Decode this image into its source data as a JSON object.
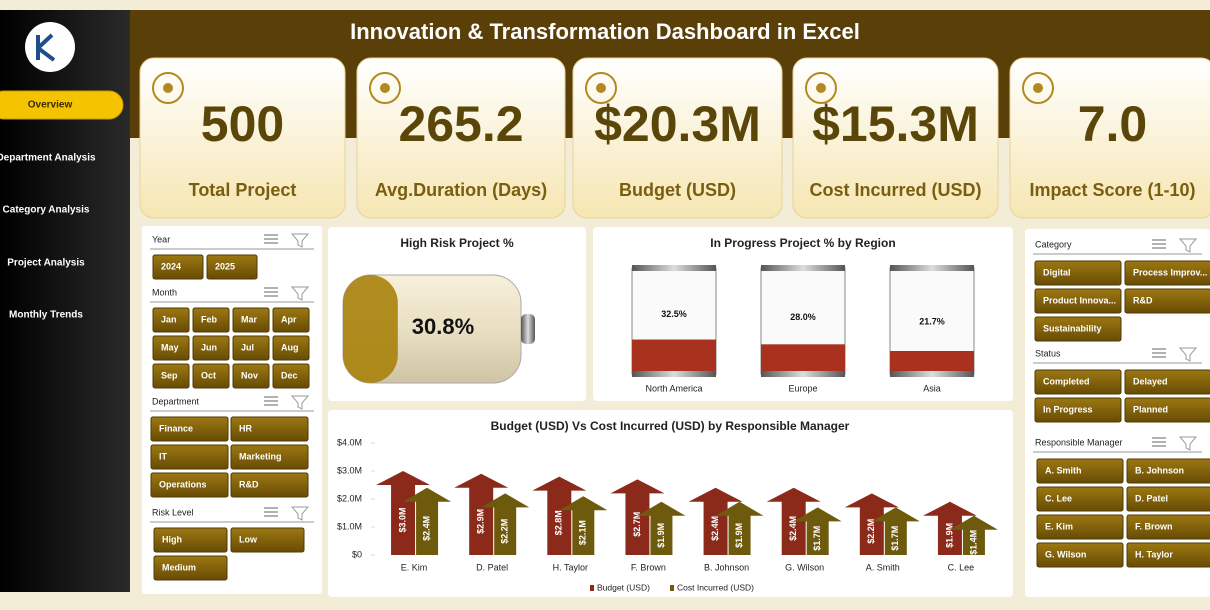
{
  "header": {
    "title": "Innovation & Transformation Dashboard in Excel"
  },
  "nav": [
    "Overview",
    "Department Analysis",
    "Category Analysis",
    "Project Analysis",
    "Monthly Trends"
  ],
  "kpis": [
    {
      "value": "500",
      "label": "Total Project"
    },
    {
      "value": "265.2",
      "label": "Avg.Duration (Days)"
    },
    {
      "value": "$20.3M",
      "label": "Budget (USD)"
    },
    {
      "value": "$15.3M",
      "label": "Cost Incurred (USD)"
    },
    {
      "value": "7.0",
      "label": "Impact Score (1-10)"
    }
  ],
  "slicers_left": [
    {
      "title": "Year",
      "items": [
        "2024",
        "2025"
      ]
    },
    {
      "title": "Month",
      "items": [
        "Jan",
        "Feb",
        "Mar",
        "Apr",
        "May",
        "Jun",
        "Jul",
        "Aug",
        "Sep",
        "Oct",
        "Nov",
        "Dec"
      ]
    },
    {
      "title": "Department",
      "items": [
        "Finance",
        "HR",
        "IT",
        "Marketing",
        "Operations",
        "R&D"
      ]
    },
    {
      "title": "Risk Level",
      "items": [
        "High",
        "Low",
        "Medium"
      ]
    }
  ],
  "slicers_right": [
    {
      "title": "Category",
      "items": [
        "Digital",
        "Process Improv...",
        "Product Innova...",
        "R&D",
        "Sustainability"
      ]
    },
    {
      "title": "Status",
      "items": [
        "Completed",
        "Delayed",
        "In Progress",
        "Planned"
      ]
    },
    {
      "title": "Responsible Manager",
      "items": [
        "A. Smith",
        "B. Johnson",
        "C. Lee",
        "D. Patel",
        "E. Kim",
        "F. Brown",
        "G. Wilson",
        "H. Taylor"
      ]
    }
  ],
  "chart_data": [
    {
      "type": "battery",
      "title": "High Risk Project %",
      "values": [
        30.8
      ],
      "value_labels": [
        "30.8%"
      ],
      "color": "#a8820c"
    },
    {
      "type": "tube",
      "title": "In Progress Project % by Region",
      "categories": [
        "North America",
        "Europe",
        "Asia"
      ],
      "values": [
        32.5,
        28.0,
        21.7
      ],
      "value_labels": [
        "32.5%",
        "28.0%",
        "21.7%"
      ],
      "color": "#a8321e"
    },
    {
      "type": "arrow-bar",
      "title": "Budget (USD) Vs Cost Incurred (USD) by Responsible Manager",
      "categories": [
        "E. Kim",
        "D. Patel",
        "H. Taylor",
        "F. Brown",
        "B. Johnson",
        "G. Wilson",
        "A. Smith",
        "C. Lee"
      ],
      "series": [
        {
          "name": "Budget (USD)",
          "color": "#8b2a1a",
          "values": [
            3000000,
            2900000,
            2800000,
            2700000,
            2400000,
            2400000,
            2200000,
            1900000
          ],
          "value_labels": [
            "$3.0M",
            "$2.9M",
            "$2.8M",
            "$2.7M",
            "$2.4M",
            "$2.4M",
            "$2.2M",
            "$1.9M"
          ]
        },
        {
          "name": "Cost Incurred (USD)",
          "color": "#6e5a0c",
          "values": [
            2400000,
            2200000,
            2100000,
            1900000,
            1900000,
            1700000,
            1700000,
            1400000
          ],
          "value_labels": [
            "$2.4M",
            "$2.2M",
            "$2.1M",
            "$1.9M",
            "$1.9M",
            "$1.7M",
            "$1.7M",
            "$1.4M"
          ]
        }
      ],
      "ylim": [
        0,
        4000000
      ],
      "yticks": [
        {
          "value": 0,
          "label": "$0"
        },
        {
          "value": 1000000,
          "label": "$1.0M"
        },
        {
          "value": 2000000,
          "label": "$2.0M"
        },
        {
          "value": 3000000,
          "label": "$3.0M"
        },
        {
          "value": 4000000,
          "label": "$4.0M"
        }
      ],
      "legend": "bottom"
    }
  ]
}
